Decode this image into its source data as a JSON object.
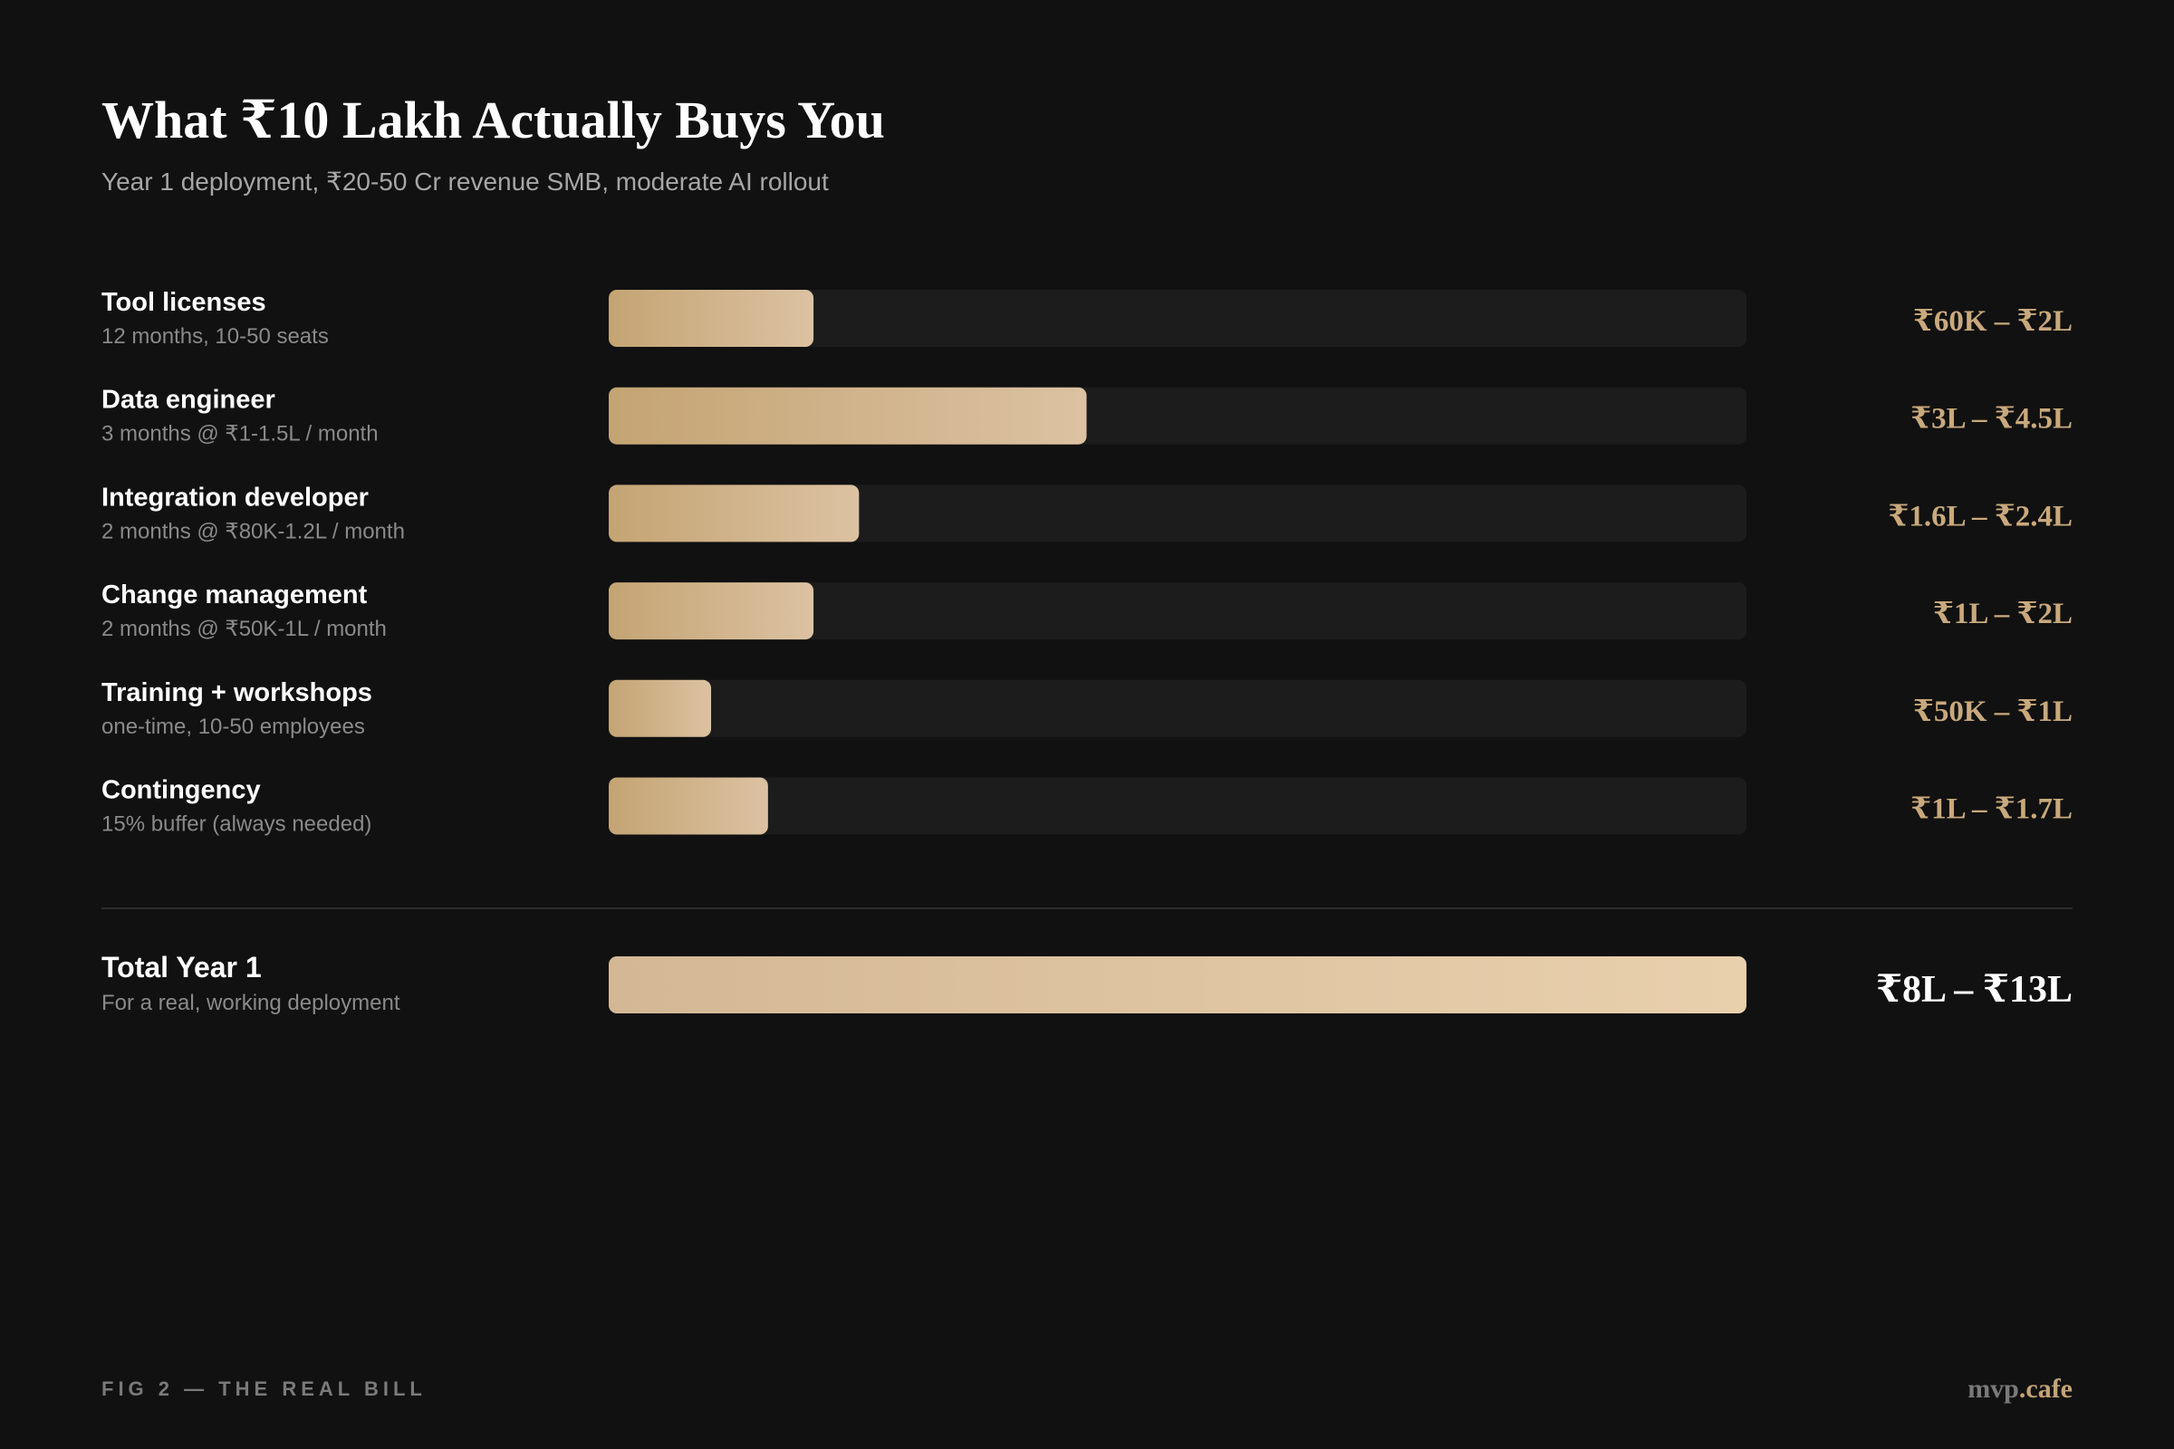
{
  "chart_data": {
    "type": "bar",
    "orientation": "horizontal",
    "title": "What ₹10 Lakh Actually Buys You",
    "subtitle": "Year 1 deployment, ₹20-50 Cr revenue SMB, moderate AI rollout",
    "categories": [
      "Tool licenses",
      "Data engineer",
      "Integration developer",
      "Change management",
      "Training + workshops",
      "Contingency"
    ],
    "details": [
      "12 months, 10-50 seats",
      "3 months @ ₹1-1.5L / month",
      "2 months @ ₹80K-1.2L / month",
      "2 months @ ₹50K-1L / month",
      "one-time, 10-50 employees",
      "15% buffer (always needed)"
    ],
    "values": [
      18,
      42,
      22,
      18,
      9,
      14
    ],
    "ranges": [
      "₹60K – ₹2L",
      "₹3L – ₹4.5L",
      "₹1.6L – ₹2.4L",
      "₹1L – ₹2L",
      "₹50K – ₹1L",
      "₹1L – ₹1.7L"
    ],
    "xlim": [
      0,
      100
    ],
    "colors": [
      "#c4a473",
      "#dcc2a2"
    ],
    "total": {
      "label": "Total Year 1",
      "detail": "For a real, working deployment",
      "value": 100,
      "range": "₹8L – ₹13L",
      "colors": [
        "#d4b895",
        "#e9d0ad"
      ]
    },
    "footer": "FIG 2 — THE REAL BILL",
    "brand": {
      "name": "mvp",
      "suffix": ".cafe"
    }
  }
}
